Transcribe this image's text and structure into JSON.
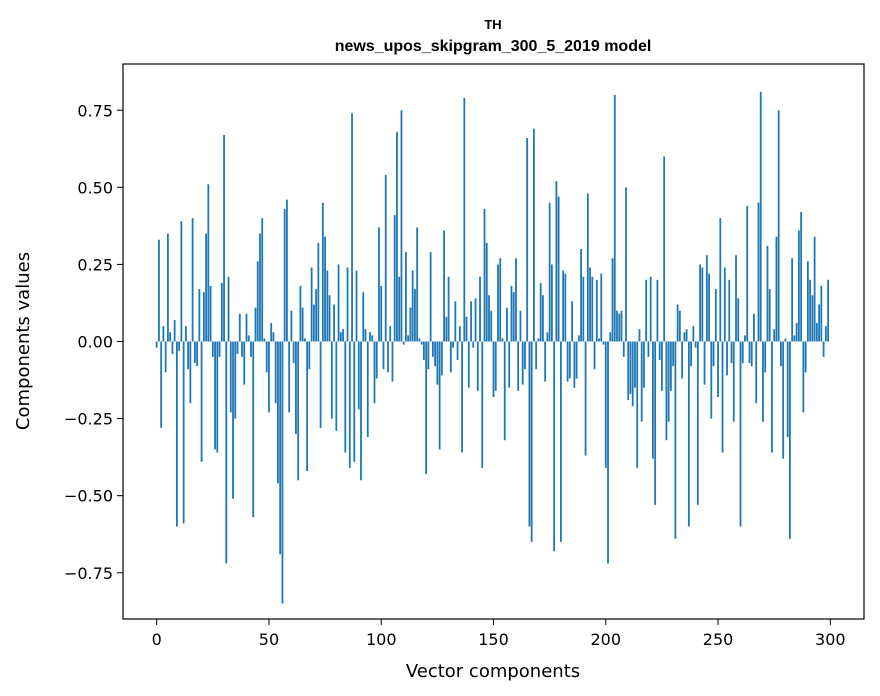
{
  "chart_data": {
    "type": "bar",
    "title": "TH",
    "subtitle": "news_upos_skipgram_300_5_2019 model",
    "xlabel": "Vector components",
    "ylabel": "Components values",
    "xlim": [
      -15,
      315
    ],
    "ylim": [
      -0.9,
      0.9
    ],
    "xticks": [
      0,
      50,
      100,
      150,
      200,
      250,
      300
    ],
    "xtick_labels": [
      "0",
      "50",
      "100",
      "150",
      "200",
      "250",
      "300"
    ],
    "yticks": [
      -0.75,
      -0.5,
      -0.25,
      0.0,
      0.25,
      0.5,
      0.75
    ],
    "ytick_labels": [
      "−0.75",
      "−0.50",
      "−0.25",
      "0.00",
      "0.25",
      "0.50",
      "0.75"
    ],
    "bar_color": "#1f77b4",
    "grid": false,
    "x": "0..299",
    "values": [
      -0.02,
      0.33,
      -0.28,
      0.05,
      -0.1,
      0.35,
      0.03,
      -0.04,
      0.07,
      -0.6,
      -0.03,
      0.39,
      -0.59,
      0.05,
      -0.09,
      -0.2,
      0.4,
      -0.07,
      -0.08,
      0.17,
      -0.39,
      0.16,
      0.35,
      0.51,
      0.18,
      -0.05,
      -0.35,
      -0.36,
      -0.05,
      0.19,
      0.67,
      -0.72,
      0.21,
      -0.23,
      -0.51,
      -0.25,
      -0.04,
      0.09,
      -0.05,
      -0.14,
      0.09,
      0.02,
      -0.05,
      -0.57,
      0.11,
      0.26,
      0.35,
      0.4,
      0.01,
      -0.1,
      -0.23,
      0.06,
      0.03,
      -0.2,
      -0.46,
      -0.69,
      -0.85,
      0.43,
      0.46,
      -0.23,
      0.1,
      -0.07,
      -0.3,
      -0.45,
      0.18,
      0.11,
      0.01,
      -0.42,
      -0.09,
      0.24,
      0.12,
      0.17,
      0.32,
      -0.28,
      0.45,
      0.34,
      0.23,
      0.15,
      -0.25,
      0.12,
      -0.29,
      0.25,
      0.03,
      0.04,
      -0.36,
      0.24,
      -0.41,
      0.74,
      -0.39,
      0.23,
      -0.22,
      -0.45,
      0.16,
      0.04,
      -0.31,
      0.03,
      0.02,
      -0.2,
      -0.12,
      0.37,
      0.18,
      -0.09,
      0.54,
      -0.1,
      0.05,
      -0.13,
      0.41,
      0.68,
      0.21,
      0.75,
      -0.01,
      0.29,
      0.02,
      0.11,
      0.23,
      0.17,
      0.37,
      0.01,
      -0.01,
      -0.06,
      -0.43,
      -0.09,
      0.29,
      -0.05,
      -0.08,
      -0.14,
      -0.35,
      -0.11,
      0.36,
      0.08,
      0.21,
      -0.1,
      -0.02,
      0.13,
      -0.06,
      0.05,
      -0.36,
      0.79,
      0.08,
      -0.15,
      0.13,
      -0.02,
      0.14,
      -0.16,
      0.21,
      -0.41,
      0.43,
      0.32,
      0.15,
      0.1,
      -0.18,
      -0.16,
      0.25,
      0.27,
      0.01,
      -0.32,
      0.11,
      -0.15,
      0.18,
      0.16,
      0.27,
      -0.16,
      0.1,
      -0.14,
      -0.09,
      0.66,
      -0.6,
      -0.65,
      0.69,
      -0.09,
      0.01,
      0.19,
      0.15,
      -0.13,
      0.03,
      0.45,
      0.25,
      -0.68,
      0.52,
      0.47,
      -0.65,
      0.23,
      0.22,
      -0.13,
      -0.12,
      0.13,
      -0.15,
      -0.12,
      0.02,
      0.3,
      0.21,
      -0.37,
      0.48,
      0.24,
      0.21,
      -0.09,
      0.2,
      0.01,
      0.22,
      -0.01,
      -0.41,
      -0.72,
      0.03,
      0.27,
      0.8,
      0.1,
      0.09,
      0.1,
      -0.05,
      0.5,
      -0.19,
      -0.17,
      -0.21,
      -0.15,
      -0.41,
      0.04,
      -0.26,
      -0.15,
      0.2,
      -0.05,
      0.21,
      -0.38,
      -0.53,
      0.2,
      -0.06,
      -0.16,
      0.6,
      -0.32,
      -0.26,
      -0.16,
      -0.08,
      -0.64,
      0.12,
      0.1,
      -0.12,
      0.03,
      0.04,
      -0.6,
      -0.08,
      0.05,
      -0.02,
      -0.53,
      0.25,
      0.24,
      -0.14,
      0.28,
      0.22,
      -0.25,
      -0.08,
      0.17,
      -0.18,
      0.4,
      -0.36,
      0.24,
      -0.11,
      0.2,
      -0.07,
      -0.26,
      0.28,
      0.14,
      -0.6,
      -0.07,
      0.02,
      0.44,
      -0.07,
      -0.08,
      0.09,
      -0.2,
      0.45,
      0.81,
      -0.26,
      -0.1,
      0.31,
      0.17,
      -0.36,
      0.04,
      0.34,
      0.75,
      -0.08,
      -0.38,
      0.01,
      -0.31,
      -0.64,
      0.27,
      0.02,
      0.06,
      0.36,
      0.42,
      -0.23,
      -0.1,
      0.26,
      0.2,
      0.15,
      0.34,
      0.06,
      0.12,
      0.18,
      -0.05,
      0.05,
      0.2
    ]
  }
}
